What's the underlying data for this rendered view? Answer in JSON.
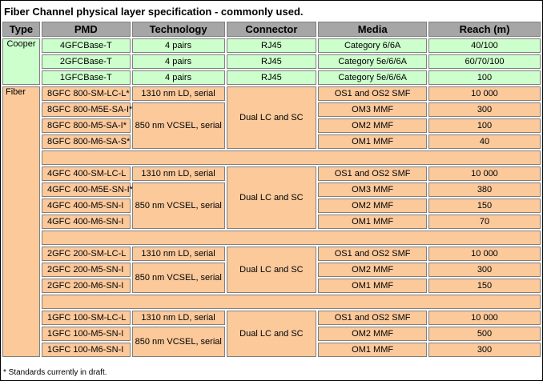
{
  "title": "Fiber Channel physical layer specification - commonly used.",
  "columns": [
    "Type",
    "PMD",
    "Technology",
    "Connector",
    "Media",
    "Reach (m)"
  ],
  "cooper": {
    "type": "Cooper",
    "rows": [
      {
        "pmd": "4GFCBase-T",
        "technology": "4 pairs",
        "connector": "RJ45",
        "media": "Category 6/6A",
        "reach": "40/100"
      },
      {
        "pmd": "2GFCBase-T",
        "technology": "4 pairs",
        "connector": "RJ45",
        "media": "Category 5e/6/6A",
        "reach": "60/70/100"
      },
      {
        "pmd": "1GFCBase-T",
        "technology": "4 pairs",
        "connector": "RJ45",
        "media": "Category 5e/6/6A",
        "reach": "100"
      }
    ]
  },
  "fiber": {
    "type": "Fiber",
    "groups": [
      {
        "technology": [
          "1310 nm LD, serial",
          "850 nm VCSEL, serial"
        ],
        "connector": "Dual LC and SC",
        "rows": [
          {
            "pmd": "8GFC 800-SM-LC-L*",
            "media": "OS1 and OS2 SMF",
            "reach": "10 000"
          },
          {
            "pmd": "8GFC 800-M5E-SA-I*",
            "media": "OM3 MMF",
            "reach": "300"
          },
          {
            "pmd": "8GFC 800-M5-SA-I*",
            "media": "OM2 MMF",
            "reach": "100"
          },
          {
            "pmd": "8GFC 800-M6-SA-S*",
            "media": "OM1 MMF",
            "reach": "40"
          }
        ]
      },
      {
        "technology": [
          "1310 nm LD, serial",
          "850 nm VCSEL, serial"
        ],
        "connector": "Dual LC and SC",
        "rows": [
          {
            "pmd": "4GFC 400-SM-LC-L",
            "media": "OS1 and OS2 SMF",
            "reach": "10 000"
          },
          {
            "pmd": "4GFC 400-M5E-SN-I*",
            "media": "OM3 MMF",
            "reach": "380"
          },
          {
            "pmd": "4GFC 400-M5-SN-I",
            "media": "OM2 MMF",
            "reach": "150"
          },
          {
            "pmd": "4GFC 400-M6-SN-I",
            "media": "OM1 MMF",
            "reach": "70"
          }
        ]
      },
      {
        "technology": [
          "1310 nm LD, serial",
          "850 nm VCSEL, serial"
        ],
        "connector": "Dual LC and SC",
        "rows": [
          {
            "pmd": "2GFC 200-SM-LC-L",
            "media": "OS1 and OS2 SMF",
            "reach": "10 000"
          },
          {
            "pmd": "2GFC 200-M5-SN-I",
            "media": "OM2 MMF",
            "reach": "300"
          },
          {
            "pmd": "2GFC 200-M6-SN-I",
            "media": "OM1 MMF",
            "reach": "150"
          }
        ]
      },
      {
        "technology": [
          "1310 nm LD, serial",
          "850 nm VCSEL, serial"
        ],
        "connector": "Dual LC and SC",
        "rows": [
          {
            "pmd": "1GFC 100-SM-LC-L",
            "media": "OS1 and OS2 SMF",
            "reach": "10 000"
          },
          {
            "pmd": "1GFC 100-M5-SN-I",
            "media": "OM2 MMF",
            "reach": "500"
          },
          {
            "pmd": "1GFC 100-M6-SN-I",
            "media": "OM1 MMF",
            "reach": "300"
          }
        ]
      }
    ]
  },
  "footnote": "* Standards currently in draft."
}
